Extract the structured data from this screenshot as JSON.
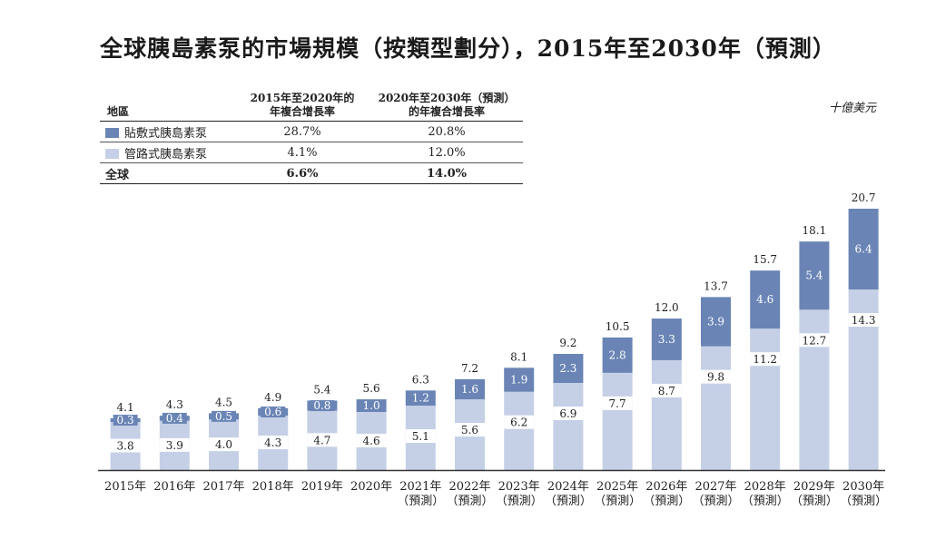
{
  "title": "全球胰島素泵的市場規模（按類型劃分），2015年至2030年（預測）",
  "unit": "十億美元",
  "table": {
    "headers": {
      "region": "地區",
      "cagr1_line1": "2015年至2020年的",
      "cagr1_line2": "年複合增長率",
      "cagr2_line1": "2020年至2030年（預測）",
      "cagr2_line2": "的年複合增長率"
    },
    "rows": [
      {
        "name": "貼敷式胰島素泵",
        "cagr1": "28.7%",
        "cagr2": "20.8%",
        "color": "#6a85b5"
      },
      {
        "name": "管路式胰島素泵",
        "cagr1": "4.1%",
        "cagr2": "12.0%",
        "color": "#c5d0e6"
      },
      {
        "name": "全球",
        "cagr1": "6.6%",
        "cagr2": "14.0%"
      }
    ]
  },
  "colors": {
    "patch": "#6a85b5",
    "tube": "#c5d0e6"
  },
  "chart_data": {
    "type": "bar",
    "stacked": true,
    "categories": [
      [
        "2015年"
      ],
      [
        "2016年"
      ],
      [
        "2017年"
      ],
      [
        "2018年"
      ],
      [
        "2019年"
      ],
      [
        "2020年"
      ],
      [
        "2021年",
        "（預測）"
      ],
      [
        "2022年",
        "（預測）"
      ],
      [
        "2023年",
        "（預測）"
      ],
      [
        "2024年",
        "（預測）"
      ],
      [
        "2025年",
        "（預測）"
      ],
      [
        "2026年",
        "（預測）"
      ],
      [
        "2027年",
        "（預測）"
      ],
      [
        "2028年",
        "（預測）"
      ],
      [
        "2029年",
        "（預測）"
      ],
      [
        "2030年",
        "（預測）"
      ]
    ],
    "series": [
      {
        "name": "管路式胰島素泵",
        "values": [
          3.8,
          3.9,
          4.0,
          4.3,
          4.7,
          4.6,
          5.1,
          5.6,
          6.2,
          6.9,
          7.7,
          8.7,
          9.8,
          11.2,
          12.7,
          14.3
        ]
      },
      {
        "name": "貼敷式胰島素泵",
        "values": [
          0.3,
          0.4,
          0.5,
          0.6,
          0.8,
          1.0,
          1.2,
          1.6,
          1.9,
          2.3,
          2.8,
          3.3,
          3.9,
          4.6,
          5.4,
          6.4
        ]
      }
    ],
    "totals": [
      4.1,
      4.3,
      4.5,
      4.9,
      5.4,
      5.6,
      6.3,
      7.2,
      8.1,
      9.2,
      10.5,
      12.0,
      13.7,
      15.7,
      18.1,
      20.7
    ],
    "ylim": [
      0,
      20.7
    ]
  }
}
